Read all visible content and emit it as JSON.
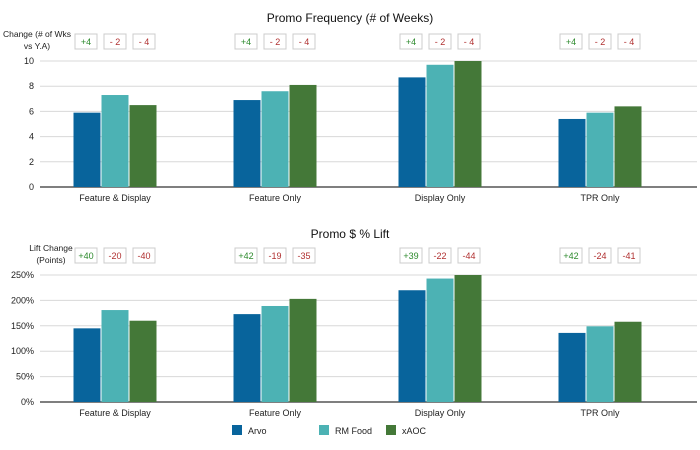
{
  "colors": {
    "arvo": "#08649c",
    "rm_food": "#4cb2b4",
    "xaoc": "#447838",
    "positive": "#2d8a2d",
    "negative": "#b03030",
    "badge_border": "#cccccc"
  },
  "legend": [
    "Arvo",
    "RM Food",
    "xAOC"
  ],
  "chart_data": [
    {
      "type": "bar",
      "title": "Promo Frequency (# of Weeks)",
      "change_label": [
        "Change (# of Wks",
        "vs Y.A)"
      ],
      "categories": [
        "Feature & Display",
        "Feature Only",
        "Display Only",
        "TPR Only"
      ],
      "ylim": [
        0,
        10
      ],
      "yticks": [
        "0",
        "2",
        "4",
        "6",
        "8",
        "10"
      ],
      "tick_values": [
        0,
        2,
        4,
        6,
        8,
        10
      ],
      "series": [
        {
          "name": "Arvo",
          "values": [
            5.9,
            6.9,
            8.7,
            5.4
          ]
        },
        {
          "name": "RM Food",
          "values": [
            7.3,
            7.6,
            9.7,
            5.9
          ]
        },
        {
          "name": "xAOC",
          "values": [
            6.5,
            8.1,
            10.0,
            6.4
          ]
        }
      ],
      "changes": [
        [
          "+4",
          "- 2",
          "- 4"
        ],
        [
          "+4",
          "- 2",
          "- 4"
        ],
        [
          "+4",
          "- 2",
          "- 4"
        ],
        [
          "+4",
          "- 2",
          "- 4"
        ]
      ]
    },
    {
      "type": "bar",
      "title": "Promo $ % Lift",
      "change_label": [
        "Lift Change",
        "(Points)"
      ],
      "categories": [
        "Feature & Display",
        "Feature Only",
        "Display Only",
        "TPR Only"
      ],
      "ylim": [
        0,
        250
      ],
      "yticks": [
        "0%",
        "50%",
        "100%",
        "150%",
        "200%",
        "250%"
      ],
      "tick_values": [
        0,
        50,
        100,
        150,
        200,
        250
      ],
      "series": [
        {
          "name": "Arvo",
          "values": [
            145,
            173,
            220,
            136
          ]
        },
        {
          "name": "RM Food",
          "values": [
            181,
            189,
            243,
            149
          ]
        },
        {
          "name": "xAOC",
          "values": [
            160,
            203,
            250,
            158
          ]
        }
      ],
      "changes": [
        [
          "+40",
          "-20",
          "-40"
        ],
        [
          "+42",
          "-19",
          "-35"
        ],
        [
          "+39",
          "-22",
          "-44"
        ],
        [
          "+42",
          "-24",
          "-41"
        ]
      ]
    }
  ]
}
